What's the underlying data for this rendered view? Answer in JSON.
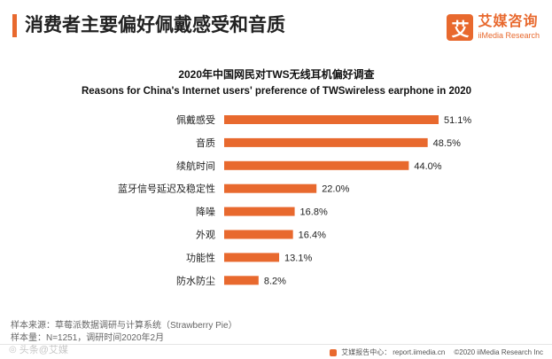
{
  "header": {
    "title": "消费者主要偏好佩戴感受和音质"
  },
  "brand": {
    "logo_char": "艾",
    "name_cn": "艾媒咨询",
    "name_en": "iiMedia Research"
  },
  "colors": {
    "accent": "#e8692e",
    "bar": "#e8692e"
  },
  "chart_data": {
    "type": "bar",
    "orientation": "horizontal",
    "title": "2020年中国网民对TWS无线耳机偏好调查",
    "subtitle": "Reasons for China's Internet users' preference of  TWSwireless earphone in 2020",
    "categories": [
      "佩戴感受",
      "音质",
      "续航时间",
      "蓝牙信号延迟及稳定性",
      "降噪",
      "外观",
      "功能性",
      "防水防尘"
    ],
    "values": [
      51.1,
      48.5,
      44.0,
      22.0,
      16.8,
      16.4,
      13.1,
      8.2
    ],
    "value_labels": [
      "51.1%",
      "48.5%",
      "44.0%",
      "22.0%",
      "16.8%",
      "16.4%",
      "13.1%",
      "8.2%"
    ],
    "unit": "%",
    "xlim": [
      0,
      51.1
    ],
    "grid": false,
    "legend": "none"
  },
  "footer": {
    "source": "样本来源：草莓派数据调研与计算系统（Strawberry Pie）",
    "sample": "样本量：N=1251，调研时间2020年2月",
    "watermark": "头条@艾媒",
    "report_label": "艾媒报告中心：",
    "report_url": "report.iimedia.cn",
    "copyright": "©2020  iiMedia Research  Inc"
  }
}
